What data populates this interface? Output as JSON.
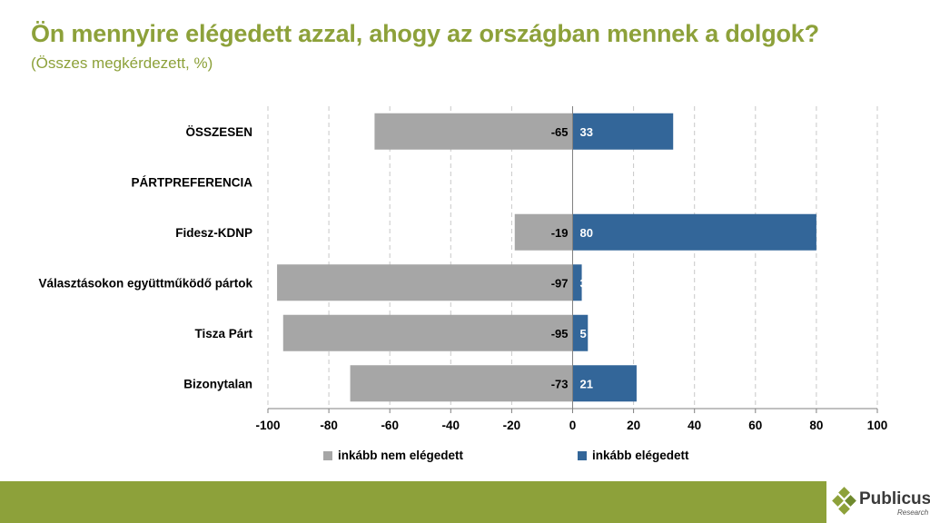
{
  "title": "Ön mennyire elégedett azzal, ahogy az országban mennek a dolgok?",
  "subtitle": "(Összes megkérdezett, %)",
  "colors": {
    "accent": "#8da13a",
    "negative": "#a6a6a6",
    "positive": "#336699"
  },
  "chart_data": {
    "type": "bar",
    "orientation": "horizontal",
    "stacked": "diverging",
    "categories": [
      "ÖSSZESEN",
      "PÁRTPREFERENCIA",
      "Fidesz-KDNP",
      "Választásokon együttműködő pártok",
      "Tisza Párt",
      "Bizonytalan"
    ],
    "series": [
      {
        "name": "inkább nem elégedett",
        "color": "#a6a6a6",
        "values": [
          -65,
          null,
          -19,
          -97,
          -95,
          -73
        ]
      },
      {
        "name": "inkább elégedett",
        "color": "#336699",
        "values": [
          33,
          null,
          80,
          3,
          5,
          21
        ]
      }
    ],
    "xlim": [
      -100,
      100
    ],
    "xticks": [
      -100,
      -80,
      -60,
      -40,
      -20,
      0,
      20,
      40,
      60,
      80,
      100
    ],
    "grid": "vertical-dashed",
    "legend_position": "bottom"
  },
  "legend": [
    {
      "label": "inkább nem elégedett",
      "color": "#a6a6a6"
    },
    {
      "label": "inkább elégedett",
      "color": "#336699"
    }
  ],
  "logo": {
    "name": "Publicus",
    "sub": "Research"
  }
}
